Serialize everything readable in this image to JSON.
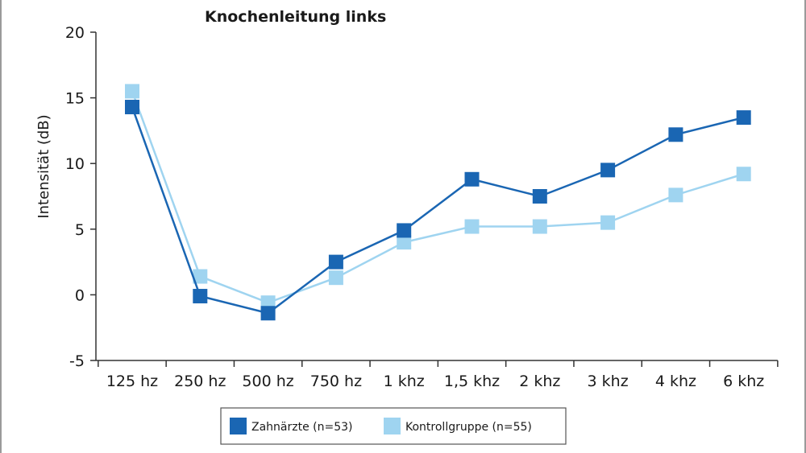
{
  "chart_data": {
    "type": "line",
    "title": "Knochenleitung links",
    "xlabel": "",
    "ylabel": "Intensität (dB)",
    "ylim": [
      -5,
      20
    ],
    "yticks": [
      "20",
      "15",
      "10",
      "5",
      "0",
      "-5"
    ],
    "yticks_values": [
      20,
      15,
      10,
      5,
      0,
      -5
    ],
    "categories": [
      "125 hz",
      "250 hz",
      "500 hz",
      "750 hz",
      "1 khz",
      "1,5 khz",
      "2 khz",
      "3 khz",
      "4 khz",
      "6 khz"
    ],
    "series": [
      {
        "name": "Zahnärzte (n=53)",
        "color": "#1a66b3",
        "marker": "square",
        "values": [
          14.3,
          -0.1,
          -1.4,
          2.5,
          4.9,
          8.8,
          7.5,
          9.5,
          12.2,
          13.5
        ]
      },
      {
        "name": "Kontrollgruppe (n=55)",
        "color": "#9fd4f0",
        "marker": "square",
        "values": [
          15.5,
          1.4,
          -0.6,
          1.3,
          4.0,
          5.2,
          5.2,
          5.5,
          7.6,
          9.2
        ]
      }
    ],
    "grid": false,
    "legend_position": "bottom-center"
  }
}
